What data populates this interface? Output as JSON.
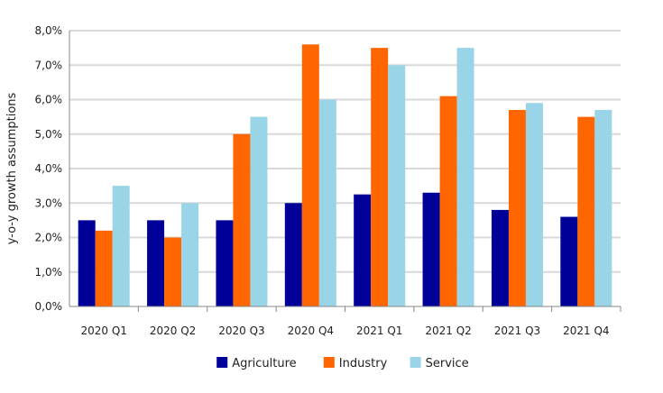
{
  "chart_data": {
    "type": "bar",
    "title": "",
    "xlabel": "",
    "ylabel": "y-o-y growth assumptions",
    "ylim": [
      0,
      8
    ],
    "y_ticks": [
      "0,0%",
      "1,0%",
      "2,0%",
      "3,0%",
      "4,0%",
      "5,0%",
      "6,0%",
      "7,0%",
      "8,0%"
    ],
    "grid": true,
    "legend_position": "bottom",
    "categories": [
      "2020 Q1",
      "2020 Q2",
      "2020 Q3",
      "2020 Q4",
      "2021 Q1",
      "2021 Q2",
      "2021 Q3",
      "2021 Q4"
    ],
    "series": [
      {
        "name": "Agriculture",
        "color": "#000099",
        "values": [
          2.5,
          2.5,
          2.5,
          3.0,
          3.25,
          3.3,
          2.8,
          2.6
        ]
      },
      {
        "name": "Industry",
        "color": "#ff6600",
        "values": [
          2.2,
          2.0,
          5.0,
          7.6,
          7.5,
          6.1,
          5.7,
          5.5
        ]
      },
      {
        "name": "Service",
        "color": "#99d5e6",
        "values": [
          3.5,
          3.0,
          5.5,
          6.0,
          7.0,
          7.5,
          5.9,
          5.7
        ]
      }
    ]
  }
}
